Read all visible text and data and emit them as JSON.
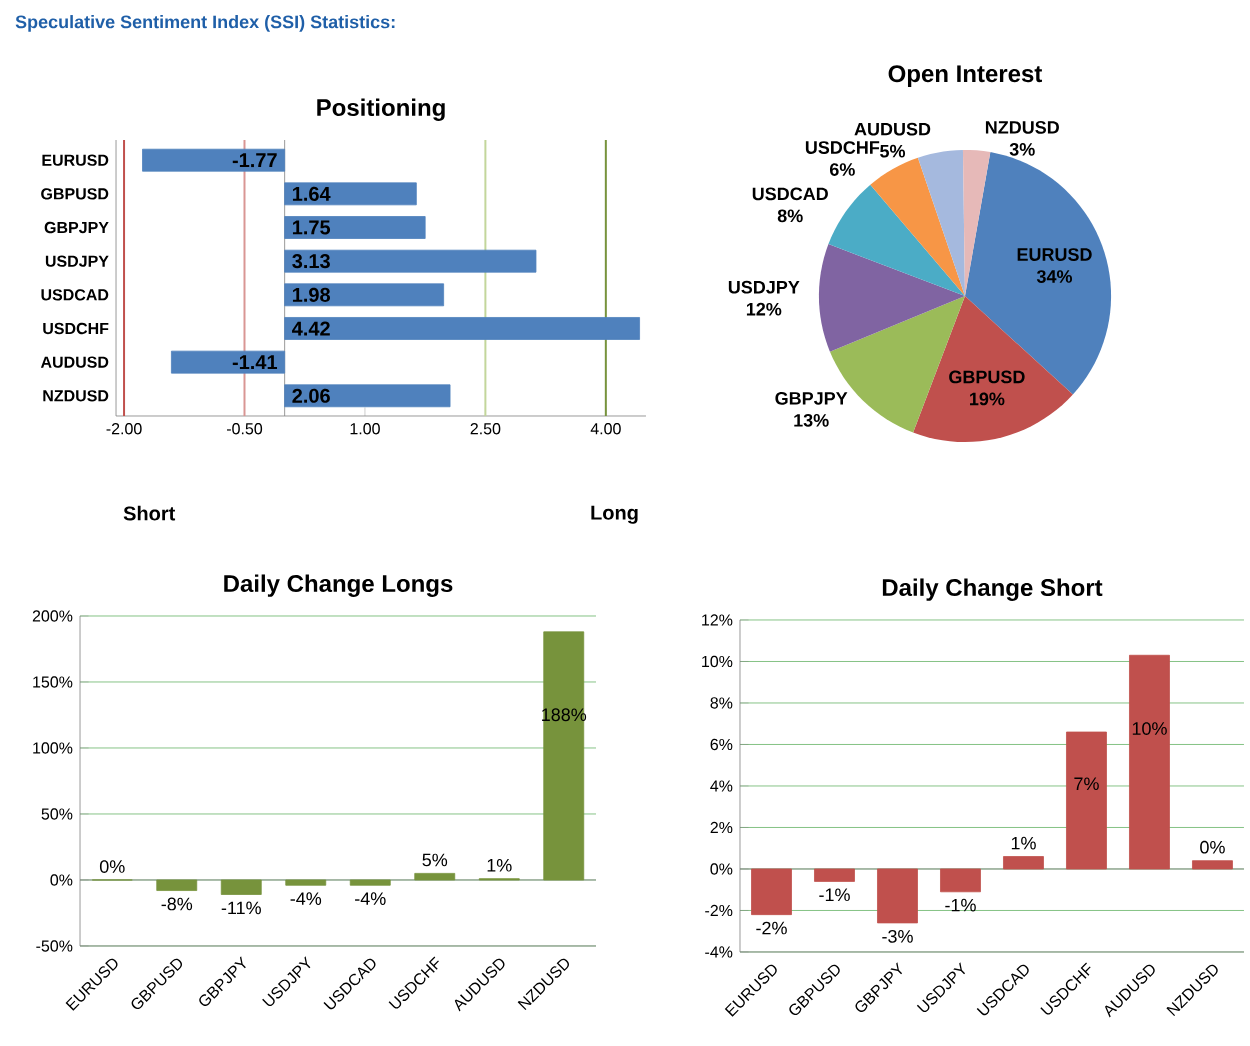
{
  "chart_data": [
    {
      "type": "bar",
      "title": "Positioning",
      "subtitle": "Speculative Sentiment Index (SSI) Statistics:",
      "orientation": "horizontal",
      "categories": [
        "EURUSD",
        "GBPUSD",
        "GBPJPY",
        "USDJPY",
        "USDCAD",
        "USDCHF",
        "AUDUSD",
        "NZDUSD"
      ],
      "values": [
        -1.77,
        1.64,
        1.75,
        3.13,
        1.98,
        4.42,
        -1.41,
        2.06
      ],
      "color": "#4f81bd",
      "data_labels": true,
      "xlim": [
        -2.1,
        4.5
      ],
      "xticks": [
        {
          "value": -2,
          "label": "-2.00"
        },
        {
          "value": -0.5,
          "label": "-0.50"
        },
        {
          "value": 1,
          "label": "1.00"
        },
        {
          "value": 2.5,
          "label": "2.50"
        },
        {
          "value": 4,
          "label": "4.00"
        }
      ],
      "ref_lines": [
        {
          "axis": "x",
          "value": -2,
          "color": "#c0504d"
        },
        {
          "axis": "x",
          "value": -0.5,
          "color": "#d99694"
        },
        {
          "axis": "x",
          "value": 2.5,
          "color": "#c3d69b"
        },
        {
          "axis": "x",
          "value": 4,
          "color": "#77933c"
        }
      ],
      "annotations": [
        "Short",
        "Long"
      ]
    },
    {
      "type": "pie",
      "title": "Open Interest",
      "categories": [
        "EURUSD",
        "GBPUSD",
        "GBPJPY",
        "USDJPY",
        "USDCAD",
        "USDCHF",
        "AUDUSD",
        "NZDUSD"
      ],
      "values": [
        34,
        19,
        13,
        12,
        8,
        6,
        5,
        3
      ],
      "value_labels": [
        "34%",
        "19%",
        "13%",
        "12%",
        "8%",
        "6%",
        "5%",
        "3%"
      ],
      "colors": [
        "#4f81bd",
        "#c0504d",
        "#9bbb59",
        "#8064a2",
        "#4bacc6",
        "#f79646",
        "#a5b9de",
        "#e6b9b8"
      ]
    },
    {
      "type": "bar",
      "title": "Daily Change Longs",
      "categories": [
        "EURUSD",
        "GBPUSD",
        "GBPJPY",
        "USDJPY",
        "USDCAD",
        "USDCHF",
        "AUDUSD",
        "NZDUSD"
      ],
      "values": [
        0,
        -8,
        -11,
        -4,
        -4,
        5,
        1,
        188
      ],
      "color": "#77933c",
      "value_labels": [
        "0%",
        "-8%",
        "-11%",
        "-4%",
        "-4%",
        "5%",
        "1%",
        "188%"
      ],
      "ylim": [
        -50,
        200
      ],
      "yticks": [
        {
          "value": -50,
          "label": "-50%"
        },
        {
          "value": 0,
          "label": "0%"
        },
        {
          "value": 50,
          "label": "50%"
        },
        {
          "value": 100,
          "label": "100%"
        },
        {
          "value": 150,
          "label": "150%"
        },
        {
          "value": 200,
          "label": "200%"
        }
      ],
      "grid": "y"
    },
    {
      "type": "bar",
      "title": "Daily Change Short",
      "categories": [
        "EURUSD",
        "GBPUSD",
        "GBPJPY",
        "USDJPY",
        "USDCAD",
        "USDCHF",
        "AUDUSD",
        "NZDUSD"
      ],
      "values": [
        -2.2,
        -0.6,
        -2.6,
        -1.1,
        0.6,
        6.6,
        10.3,
        0.4
      ],
      "color": "#c0504d",
      "value_labels": [
        "-2%",
        "-1%",
        "-3%",
        "-1%",
        "1%",
        "7%",
        "10%",
        "0%"
      ],
      "ylim": [
        -4,
        12
      ],
      "yticks": [
        {
          "value": -4,
          "label": "-4%"
        },
        {
          "value": -2,
          "label": "-2%"
        },
        {
          "value": 0,
          "label": "0%"
        },
        {
          "value": 2,
          "label": "2%"
        },
        {
          "value": 4,
          "label": "4%"
        },
        {
          "value": 6,
          "label": "6%"
        },
        {
          "value": 8,
          "label": "8%"
        },
        {
          "value": 10,
          "label": "10%"
        },
        {
          "value": 12,
          "label": "12%"
        }
      ],
      "grid": "y"
    }
  ]
}
